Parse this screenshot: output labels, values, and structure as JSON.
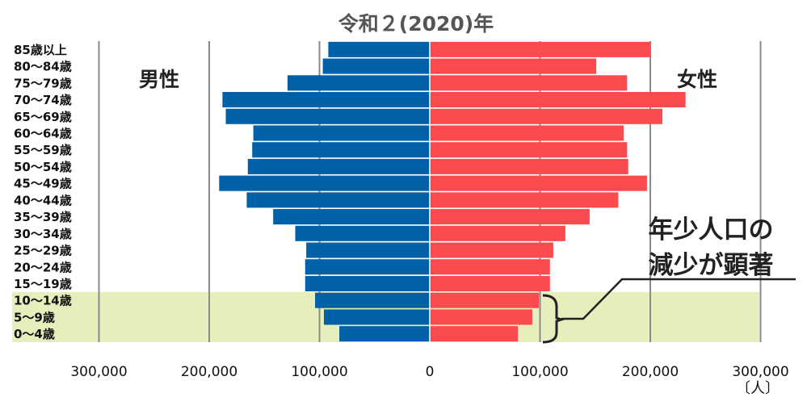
{
  "chart_data": {
    "type": "bar",
    "title": "令和２(2020)年",
    "orientation": "horizontal",
    "categories": [
      "85歳以上",
      "80〜84歳",
      "75〜79歳",
      "70〜74歳",
      "65〜69歳",
      "60〜64歳",
      "55〜59歳",
      "50〜54歳",
      "45〜49歳",
      "40〜44歳",
      "35〜39歳",
      "30〜34歳",
      "25〜29歳",
      "20〜24歳",
      "15〜19歳",
      "10〜14歳",
      "5〜9歳",
      "0〜4歳"
    ],
    "series": [
      {
        "name": "男性",
        "color": "#0061a8",
        "values": [
          92000,
          97000,
          129000,
          188000,
          185000,
          160000,
          161000,
          165000,
          191000,
          166000,
          142000,
          122000,
          112000,
          113000,
          113000,
          104000,
          96000,
          82000
        ]
      },
      {
        "name": "女性",
        "color": "#fb4b4f",
        "values": [
          200000,
          151000,
          179000,
          232000,
          211000,
          176000,
          179000,
          180000,
          197000,
          171000,
          145000,
          123000,
          112000,
          109000,
          109000,
          99000,
          93000,
          80000
        ]
      }
    ],
    "xlim": [
      -300000,
      300000
    ],
    "xticks": [
      "300,000",
      "200,000",
      "100,000",
      "0",
      "100,000",
      "200,000",
      "300,000"
    ],
    "xtick_values": [
      -300000,
      -200000,
      -100000,
      0,
      100000,
      200000,
      300000
    ],
    "unit": "〔人〕",
    "grid": true,
    "highlight_categories": [
      "10〜14歳",
      "5〜9歳",
      "0〜4歳"
    ],
    "highlight_color": "#e6eebb",
    "annotation": [
      "年少人口の",
      "減少が顕著"
    ]
  }
}
